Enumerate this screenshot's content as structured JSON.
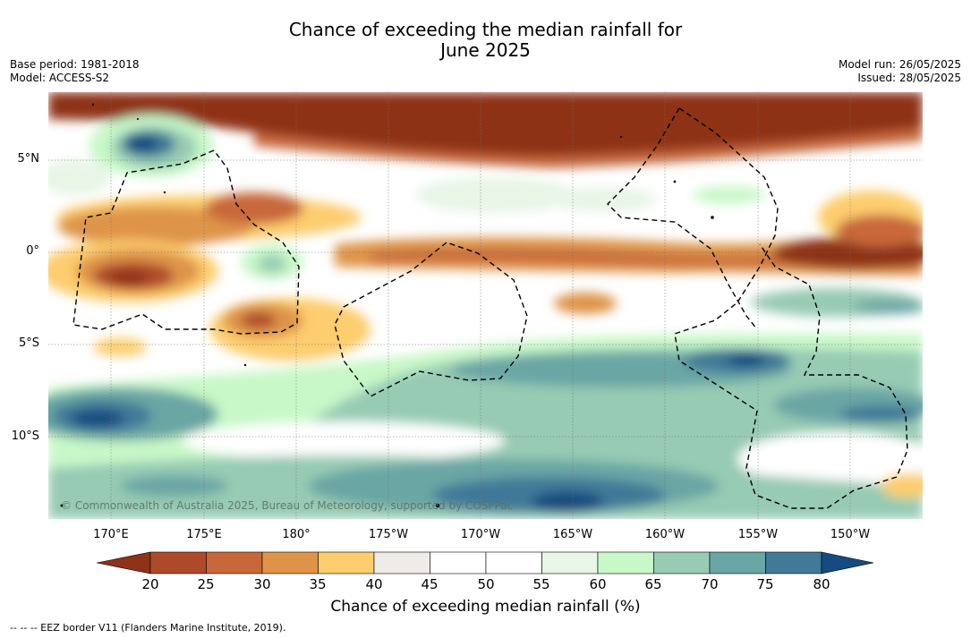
{
  "title_line1": "Chance of exceeding the median rainfall for",
  "title_line2": "June 2025",
  "base_period": "Base period: 1981-2018",
  "model": "Model: ACCESS-S2",
  "model_run": "Model run: 26/05/2025",
  "issued": "Issued: 28/05/2025",
  "lat_labels": [
    "5°N",
    "0°",
    "5°S",
    "10°S"
  ],
  "lon_labels": [
    "170°E",
    "175°E",
    "180°",
    "175°W",
    "170°W",
    "165°W",
    "160°W",
    "155°W",
    "150°W"
  ],
  "copyright": "© Commonwealth of Australia 2025, Bureau of Meteorology, supported by COSPPac",
  "colorbar": {
    "label": "Chance of exceeding median rainfall (%)",
    "ticks": [
      "20",
      "25",
      "30",
      "35",
      "40",
      "45",
      "50",
      "55",
      "60",
      "65",
      "70",
      "75",
      "80"
    ],
    "colors": [
      "#8e3219",
      "#ad4a29",
      "#c8683a",
      "#de9448",
      "#fdcd6e",
      "#efebe6",
      "#ffffff",
      "#ffffff",
      "#e8f5e7",
      "#c8f8c8",
      "#97cbb3",
      "#6aa6a4",
      "#417997",
      "#154b80"
    ]
  },
  "footer": "--  --  -- EEZ border V11 (Flanders Marine Institute, 2019)."
}
